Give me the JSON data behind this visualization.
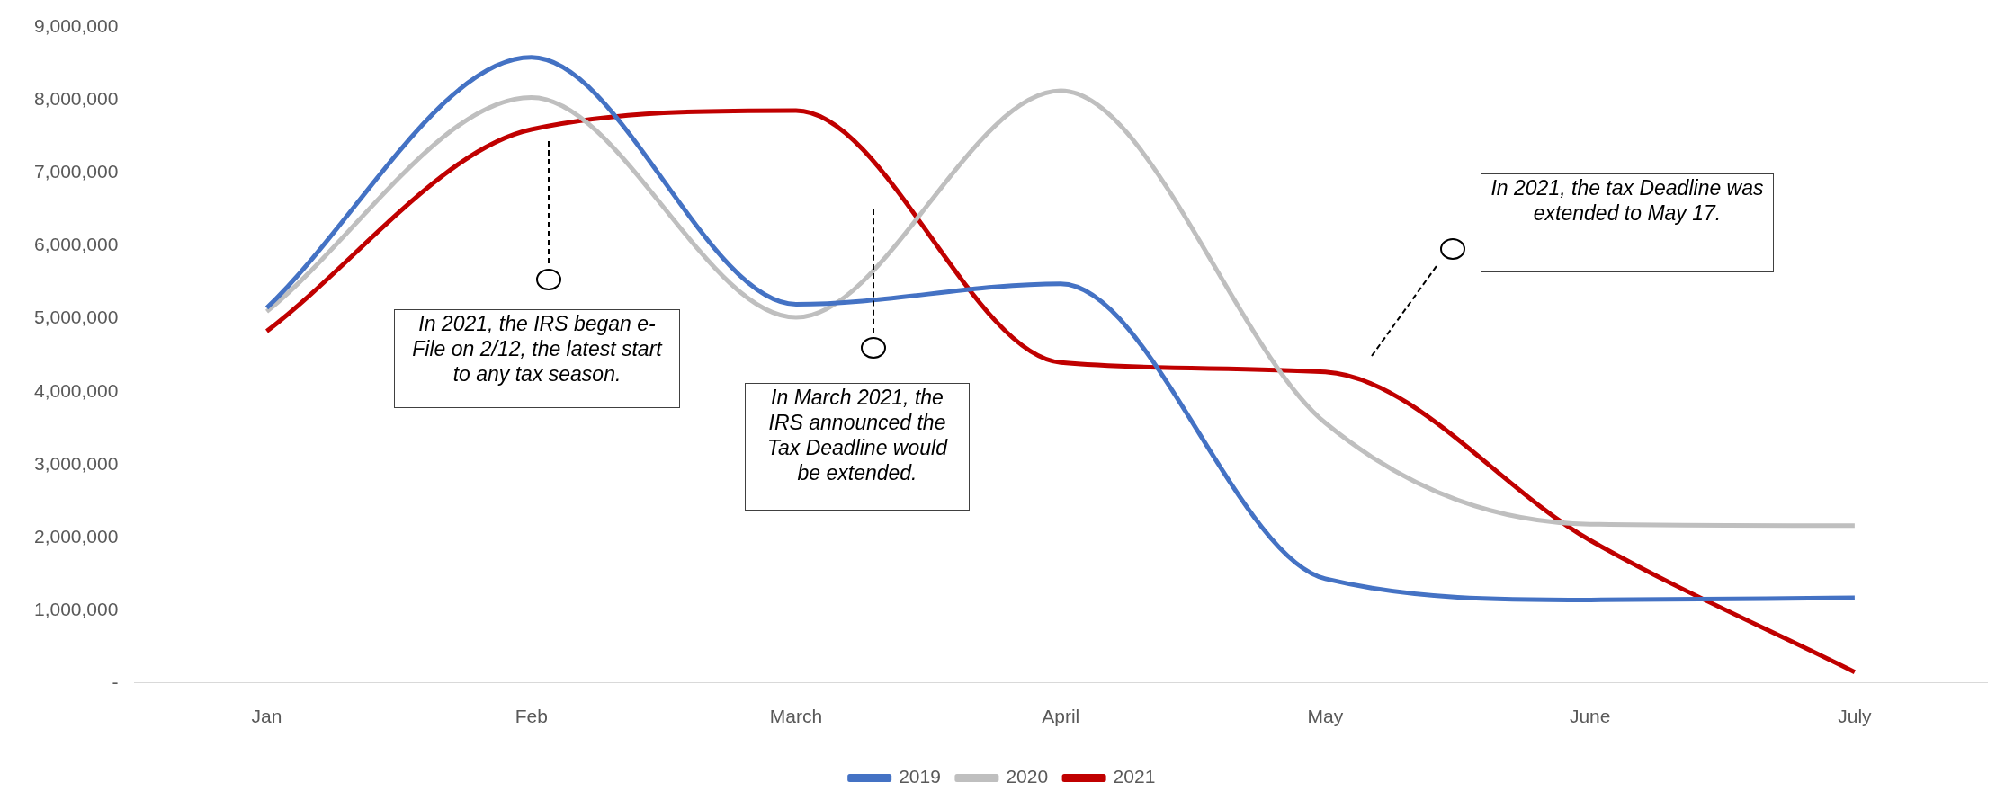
{
  "chart_data": {
    "type": "line",
    "categories": [
      "Jan",
      "Feb",
      "March",
      "April",
      "May",
      "June",
      "July"
    ],
    "series": [
      {
        "name": "2019",
        "color": "#4472c4",
        "values": [
          5150000,
          8590000,
          5200000,
          5480000,
          1430000,
          1140000,
          1170000
        ]
      },
      {
        "name": "2020",
        "color": "#bfbfbf",
        "values": [
          5100000,
          8040000,
          5020000,
          8130000,
          3570000,
          2180000,
          2160000
        ]
      },
      {
        "name": "2021",
        "color": "#c00000",
        "values": [
          4830000,
          7600000,
          7860000,
          4400000,
          4270000,
          1960000,
          150000
        ]
      }
    ],
    "ylim": [
      0,
      9000000
    ],
    "yticks": [
      {
        "value": 0,
        "label": "-"
      },
      {
        "value": 1000000,
        "label": "1,000,000"
      },
      {
        "value": 2000000,
        "label": "2,000,000"
      },
      {
        "value": 3000000,
        "label": "3,000,000"
      },
      {
        "value": 4000000,
        "label": "4,000,000"
      },
      {
        "value": 5000000,
        "label": "5,000,000"
      },
      {
        "value": 6000000,
        "label": "6,000,000"
      },
      {
        "value": 7000000,
        "label": "7,000,000"
      },
      {
        "value": 8000000,
        "label": "8,000,000"
      },
      {
        "value": 9000000,
        "label": "9,000,000"
      }
    ],
    "grid": false,
    "legend": "bottom",
    "marker": "none",
    "line_style": "solid",
    "annotations": [
      "In 2021, the IRS began e-File on 2/12, the latest start to any tax season.",
      "In March 2021, the IRS announced the Tax Deadline would be extended.",
      "In 2021, the tax Deadline was extended to May 17."
    ]
  }
}
